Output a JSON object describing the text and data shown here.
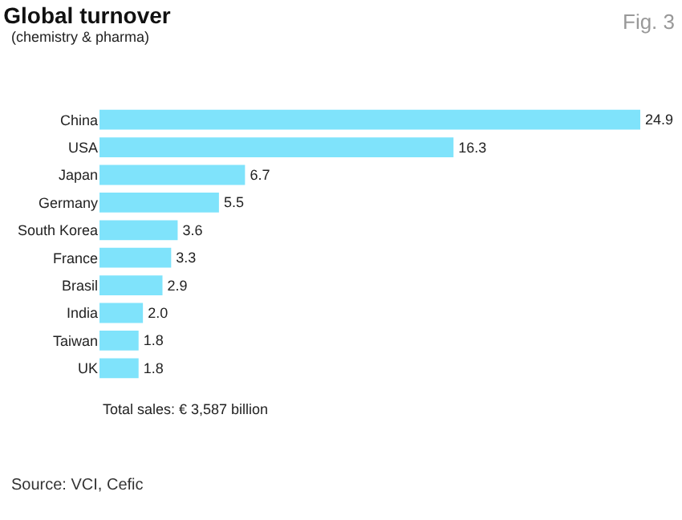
{
  "chart_data": {
    "type": "bar",
    "orientation": "horizontal",
    "title": "Global turnover",
    "subtitle": "(chemistry & pharma)",
    "categories": [
      "China",
      "USA",
      "Japan",
      "Germany",
      "South Korea",
      "France",
      "Brasil",
      "India",
      "Taiwan",
      "UK"
    ],
    "values": [
      24.9,
      16.3,
      6.7,
      5.5,
      3.6,
      3.3,
      2.9,
      2.0,
      1.8,
      1.8
    ],
    "value_labels": [
      "24.9",
      "16.3",
      "6.7",
      "5.5",
      "3.6",
      "3.3",
      "2.9",
      "2.0",
      "1.8",
      "1.8"
    ],
    "color": "#7fe3fb",
    "annotations": [
      "Fig. 3",
      "Total sales: € 3,587 billion",
      "Source: VCI, Cefic"
    ],
    "grid": false,
    "legend": false
  }
}
